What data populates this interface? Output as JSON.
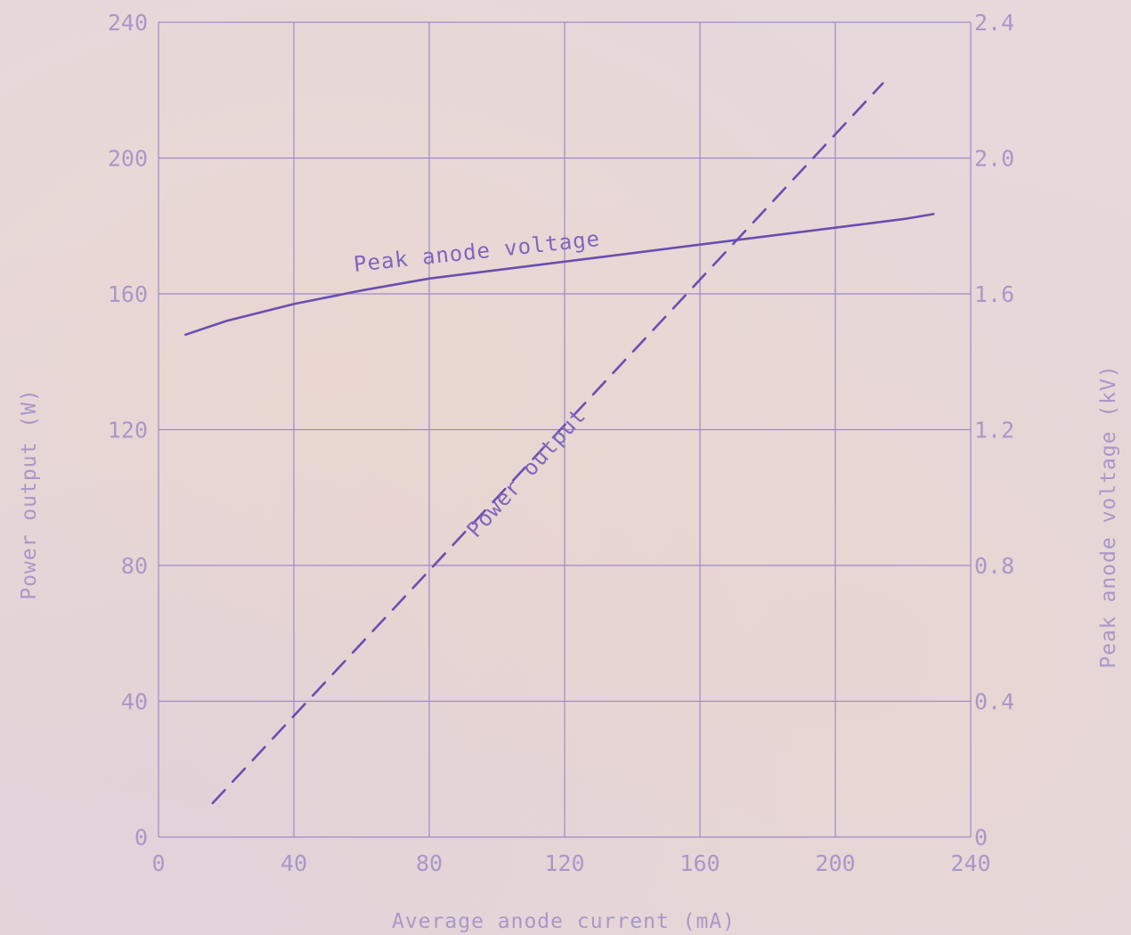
{
  "chart_data": {
    "type": "line",
    "xlabel": "Average anode current (mA)",
    "ylabel_left": "Power output (W)",
    "ylabel_right": "Peak anode voltage (kV)",
    "xlim": [
      0,
      240
    ],
    "ylim_left": [
      0,
      240
    ],
    "ylim_right": [
      0,
      2.4
    ],
    "x_ticks": [
      "0",
      "40",
      "80",
      "120",
      "160",
      "200",
      "240"
    ],
    "y_left_ticks": [
      "0",
      "40",
      "80",
      "120",
      "160",
      "200",
      "240"
    ],
    "y_right_ticks": [
      "0",
      "0.4",
      "0.8",
      "1.2",
      "1.6",
      "2.0",
      "2.4"
    ],
    "grid": true,
    "colors": {
      "ink": "#6a4fb0",
      "grid": "#9c8cc8",
      "faint": "#a998c8"
    },
    "series": [
      {
        "name": "Peak anode voltage",
        "axis": "right",
        "style": "solid",
        "x": [
          8,
          20,
          40,
          60,
          80,
          100,
          120,
          140,
          160,
          180,
          200,
          220,
          229
        ],
        "y": [
          1.48,
          1.52,
          1.57,
          1.61,
          1.645,
          1.67,
          1.695,
          1.72,
          1.745,
          1.77,
          1.795,
          1.82,
          1.835
        ]
      },
      {
        "name": "Power output",
        "axis": "left",
        "style": "dashed",
        "x": [
          16,
          214
        ],
        "y": [
          10,
          222
        ]
      }
    ]
  }
}
